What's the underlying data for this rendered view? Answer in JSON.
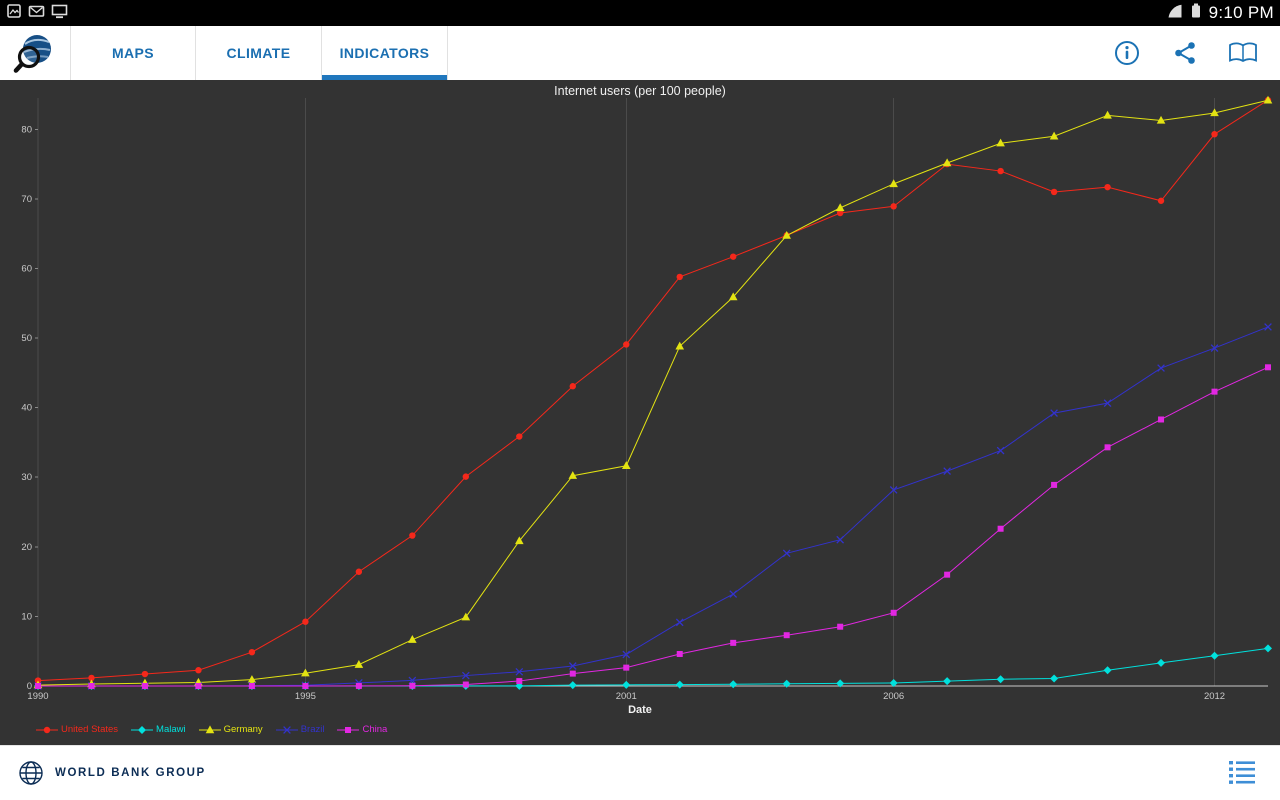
{
  "status_bar": {
    "time": "9:10 PM",
    "icons_left": [
      "screenshot-icon",
      "email-icon",
      "display-icon"
    ],
    "icons_right": [
      "wifi-icon",
      "battery-icon"
    ]
  },
  "app_bar": {
    "accent_color": "#1b6fb1",
    "tabs": [
      {
        "label": "MAPS",
        "active": false
      },
      {
        "label": "CLIMATE",
        "active": false
      },
      {
        "label": "INDICATORS",
        "active": true
      }
    ],
    "action_icons": [
      "info-icon",
      "share-icon",
      "book-icon"
    ]
  },
  "chart_data": {
    "type": "line",
    "title": "Internet users (per 100 people)",
    "xlabel": "Date",
    "ylabel": "",
    "background": "#333333",
    "grid_color": "#4b4b4b",
    "axis_color": "#c9c9c9",
    "axis_text_color": "#c9c9c9",
    "grid": "vertical-only",
    "legend_position": "bottom-left",
    "ylim": [
      0,
      84.5
    ],
    "yticks": [
      0,
      10,
      20,
      30,
      40,
      50,
      60,
      70,
      80
    ],
    "xticks": [
      1990,
      1995,
      2001,
      2006,
      2012
    ],
    "x": [
      1990,
      1991,
      1992,
      1993,
      1994,
      1995,
      1996,
      1997,
      1998,
      1999,
      2000,
      2001,
      2002,
      2003,
      2004,
      2005,
      2006,
      2007,
      2008,
      2009,
      2010,
      2011,
      2012,
      2013
    ],
    "series": [
      {
        "name": "United States",
        "marker": "circle",
        "color": "#f5281b",
        "values": [
          0.78,
          1.16,
          1.72,
          2.27,
          4.86,
          9.24,
          16.42,
          21.62,
          30.09,
          35.85,
          43.08,
          49.08,
          58.79,
          61.7,
          64.76,
          67.97,
          68.93,
          75.0,
          74.0,
          71.0,
          71.69,
          69.73,
          79.3,
          84.2
        ]
      },
      {
        "name": "Malawi",
        "marker": "diamond",
        "color": "#00e1dd",
        "values": [
          0,
          0,
          0,
          0,
          0,
          0,
          0,
          0,
          0.01,
          0.02,
          0.13,
          0.17,
          0.19,
          0.26,
          0.32,
          0.38,
          0.43,
          0.7,
          0.97,
          1.07,
          2.26,
          3.33,
          4.35,
          5.4
        ]
      },
      {
        "name": "Germany",
        "marker": "triangle",
        "color": "#e3e312",
        "values": [
          0.13,
          0.28,
          0.4,
          0.51,
          0.91,
          1.84,
          3.07,
          6.66,
          9.89,
          20.84,
          30.22,
          31.65,
          48.82,
          55.9,
          64.73,
          68.71,
          72.16,
          75.16,
          78.0,
          79.0,
          82.0,
          81.27,
          82.35,
          84.17
        ]
      },
      {
        "name": "Brazil",
        "marker": "x",
        "color": "#3333cc",
        "values": [
          0,
          0,
          0,
          0,
          0.04,
          0.1,
          0.45,
          0.8,
          1.5,
          2.04,
          2.87,
          4.53,
          9.15,
          13.21,
          19.07,
          21.02,
          28.18,
          30.88,
          33.83,
          39.22,
          40.65,
          45.69,
          48.56,
          51.6
        ]
      },
      {
        "name": "China",
        "marker": "square",
        "color": "#e227e2",
        "values": [
          0,
          0,
          0,
          0,
          0,
          0,
          0.01,
          0.03,
          0.21,
          0.71,
          1.78,
          2.64,
          4.6,
          6.2,
          7.3,
          8.52,
          10.52,
          16.0,
          22.6,
          28.9,
          34.3,
          38.3,
          42.3,
          45.8
        ]
      }
    ]
  },
  "footer": {
    "brand": "WORLD BANK GROUP"
  }
}
